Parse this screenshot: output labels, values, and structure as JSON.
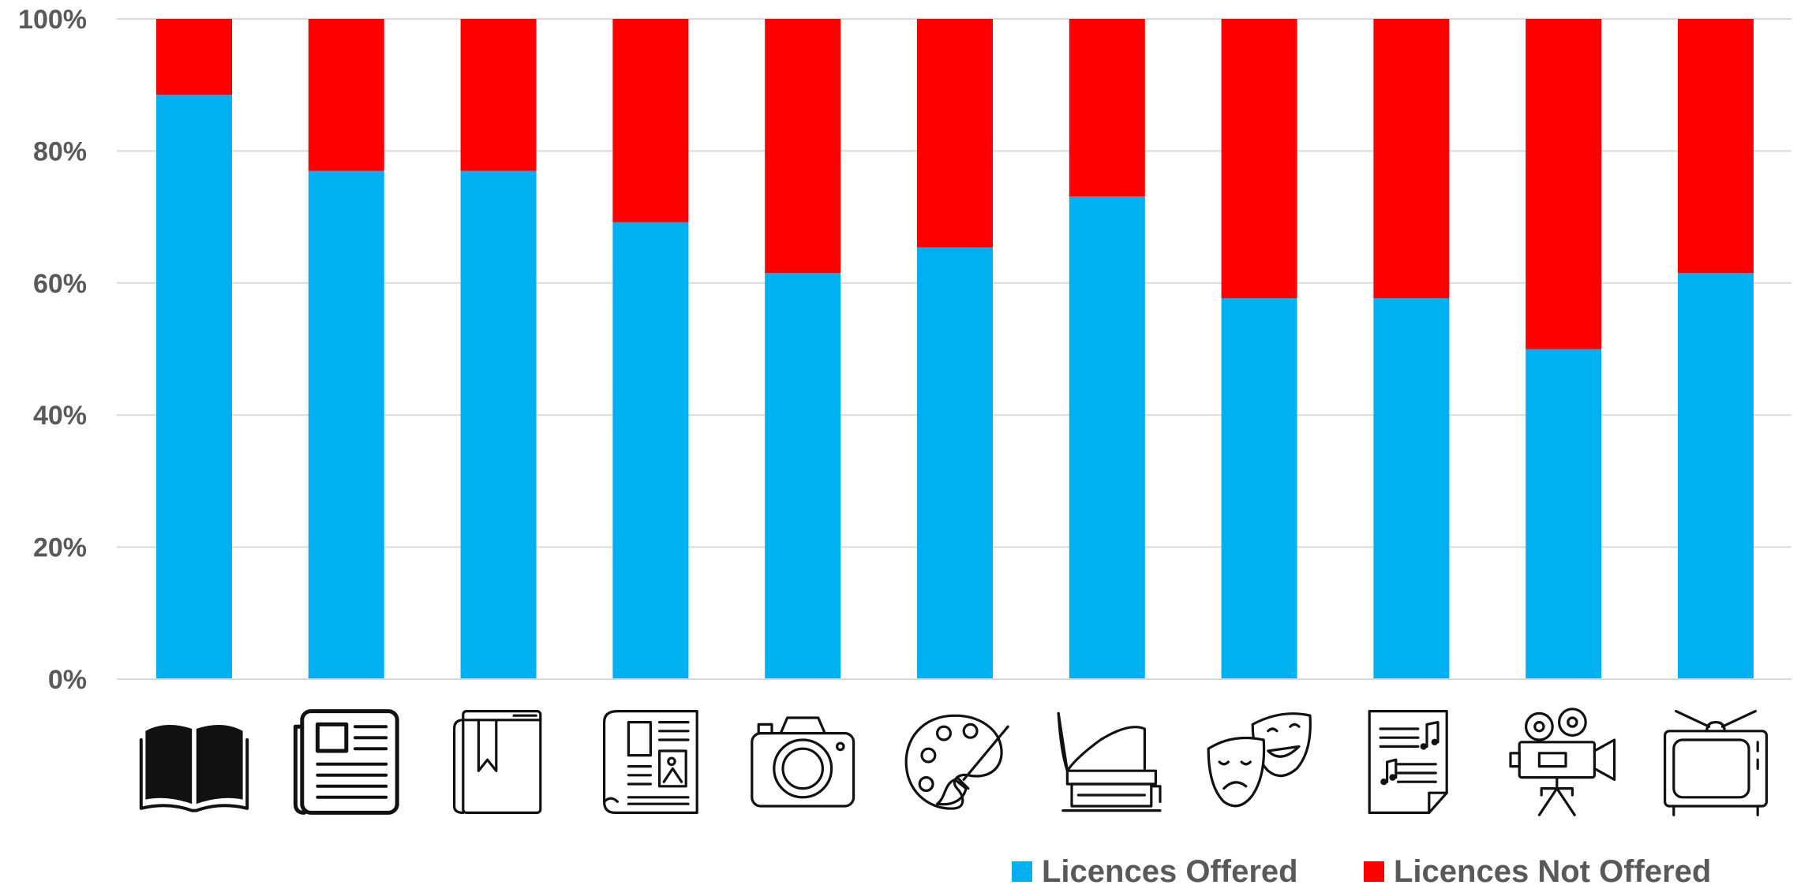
{
  "chart_data": {
    "type": "bar",
    "stacked": true,
    "percent": true,
    "categories": [
      "book",
      "newspaper",
      "bookmarked-book",
      "magazine",
      "camera",
      "palette",
      "gramophone",
      "theatre-masks",
      "sheet-music",
      "film-camera",
      "television"
    ],
    "category_icons": [
      "open-book-icon",
      "newspaper-icon",
      "bookmarked-book-icon",
      "magazine-icon",
      "camera-icon",
      "palette-icon",
      "gramophone-icon",
      "theatre-masks-icon",
      "sheet-music-icon",
      "film-camera-icon",
      "television-icon"
    ],
    "series": [
      {
        "name": "Licences Offered",
        "color": "#00b0f0",
        "values": [
          88.5,
          77,
          77,
          69.2,
          61.5,
          65.4,
          73.1,
          57.7,
          57.7,
          50,
          61.5
        ]
      },
      {
        "name": "Licences Not Offered",
        "color": "#ff0000",
        "values": [
          11.5,
          23,
          23,
          30.8,
          38.5,
          34.6,
          26.9,
          42.3,
          42.3,
          50,
          38.5
        ]
      }
    ],
    "ylim": [
      0,
      100
    ],
    "yticks": [
      "0%",
      "20%",
      "40%",
      "60%",
      "80%",
      "100%"
    ],
    "grid": true,
    "legend": "bottom-right",
    "xlabel": "",
    "ylabel": "",
    "title": ""
  }
}
